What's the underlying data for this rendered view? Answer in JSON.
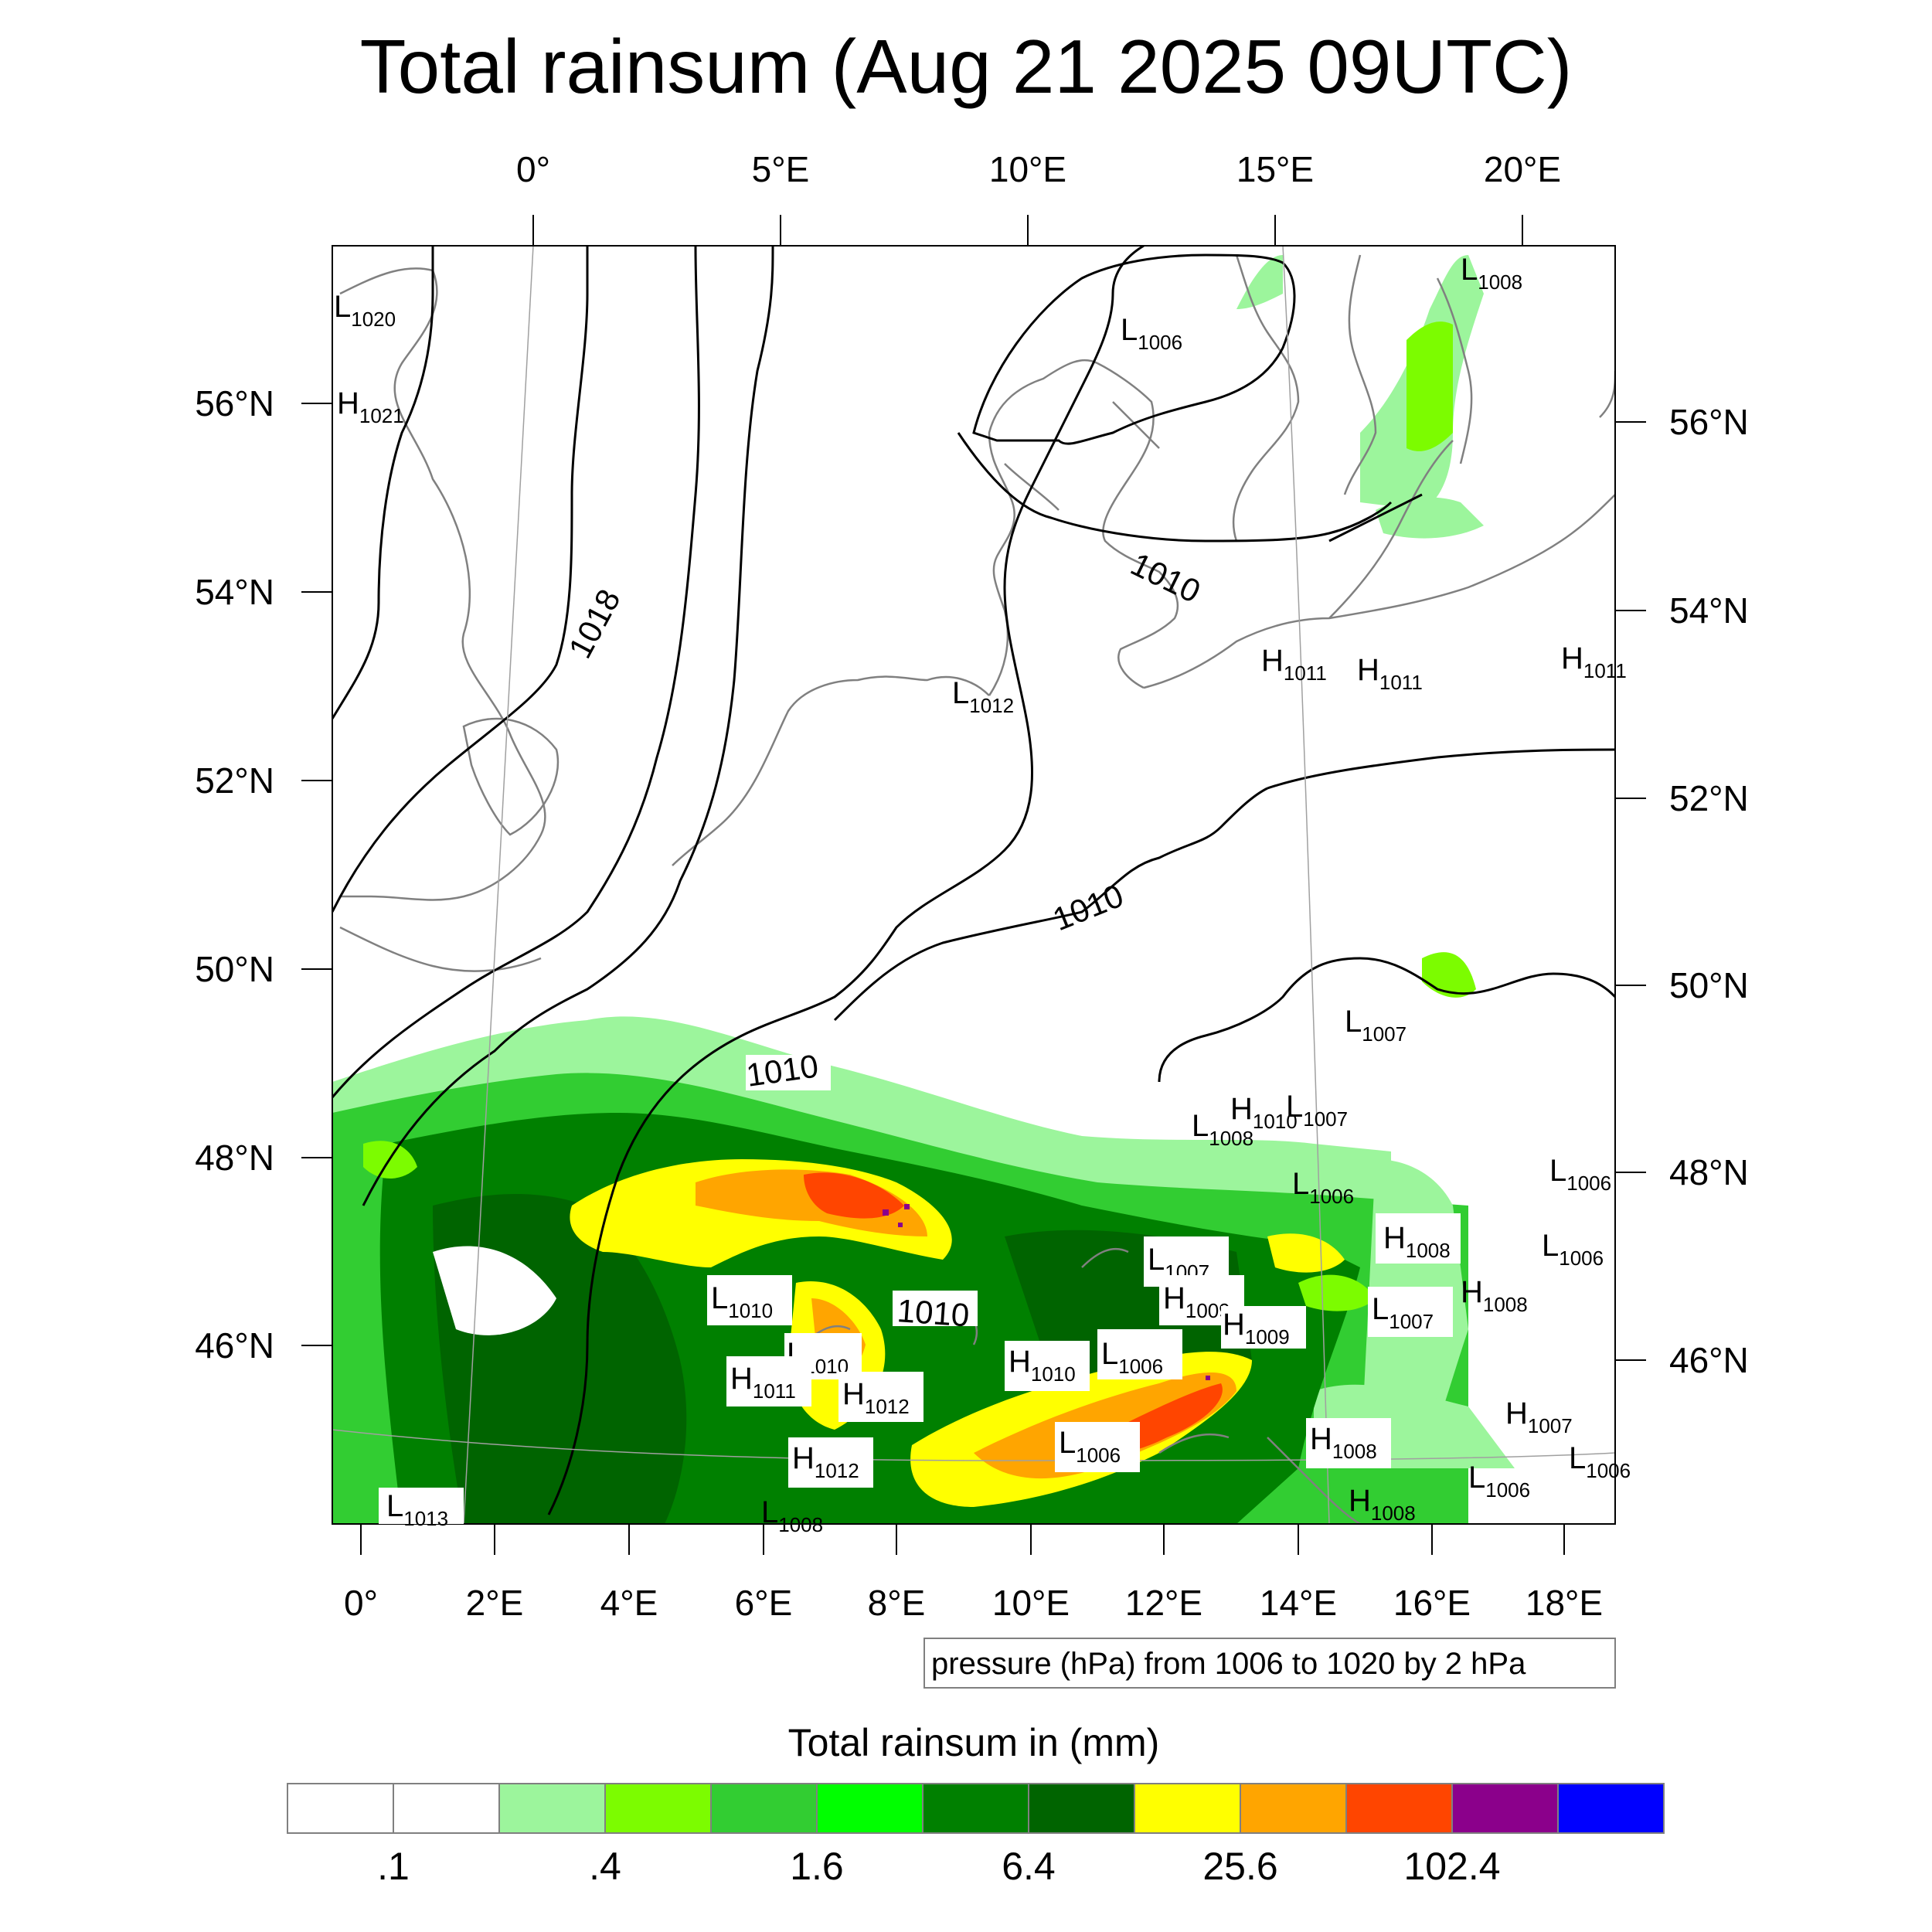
{
  "title": "Total rainsum (Aug 21 2025 09UTC)",
  "top_lon_labels": [
    "0°",
    "5°E",
    "10°E",
    "15°E",
    "20°E"
  ],
  "bottom_lon_labels": [
    "0°",
    "2°E",
    "4°E",
    "6°E",
    "8°E",
    "10°E",
    "12°E",
    "14°E",
    "16°E",
    "18°E"
  ],
  "left_lat_labels": [
    "56°N",
    "54°N",
    "52°N",
    "50°N",
    "48°N",
    "46°N"
  ],
  "right_lat_labels": [
    "56°N",
    "54°N",
    "52°N",
    "50°N",
    "48°N",
    "46°N"
  ],
  "contour_info": "pressure (hPa) from 1006 to 1020 by 2 hPa",
  "contour_labels": [
    {
      "text": "1018"
    },
    {
      "text": "1010"
    },
    {
      "text": "1010"
    },
    {
      "text": "1010"
    },
    {
      "text": "1010"
    }
  ],
  "pressure_centers": [
    {
      "kind": "L",
      "value": "1020"
    },
    {
      "kind": "H",
      "value": "1021"
    },
    {
      "kind": "L",
      "value": "1006"
    },
    {
      "kind": "L",
      "value": "1008"
    },
    {
      "kind": "L",
      "value": "1012"
    },
    {
      "kind": "H",
      "value": "1011"
    },
    {
      "kind": "H",
      "value": "1011"
    },
    {
      "kind": "H",
      "value": "1011"
    },
    {
      "kind": "L",
      "value": "1007"
    },
    {
      "kind": "L",
      "value": "1008"
    },
    {
      "kind": "H",
      "value": "1010"
    },
    {
      "kind": "L",
      "value": "1007"
    },
    {
      "kind": "L",
      "value": "1006"
    },
    {
      "kind": "L",
      "value": "1006"
    },
    {
      "kind": "H",
      "value": "1008"
    },
    {
      "kind": "L",
      "value": "1007"
    },
    {
      "kind": "L",
      "value": "1006"
    },
    {
      "kind": "L",
      "value": "1010"
    },
    {
      "kind": "H",
      "value": "1009"
    },
    {
      "kind": "H",
      "value": "1009"
    },
    {
      "kind": "L",
      "value": "1007"
    },
    {
      "kind": "H",
      "value": "1008"
    },
    {
      "kind": "L",
      "value": "1010"
    },
    {
      "kind": "H",
      "value": "1011"
    },
    {
      "kind": "H",
      "value": "1012"
    },
    {
      "kind": "H",
      "value": "1010"
    },
    {
      "kind": "L",
      "value": "1006"
    },
    {
      "kind": "L",
      "value": "1006"
    },
    {
      "kind": "H",
      "value": "1012"
    },
    {
      "kind": "H",
      "value": "1008"
    },
    {
      "kind": "H",
      "value": "1007"
    },
    {
      "kind": "L",
      "value": "1006"
    },
    {
      "kind": "L",
      "value": "1013"
    },
    {
      "kind": "L",
      "value": "1008"
    },
    {
      "kind": "H",
      "value": "1008"
    },
    {
      "kind": "L",
      "value": "1006"
    }
  ],
  "colorbar": {
    "title": "Total rainsum in (mm)",
    "colors": [
      "#ffffff",
      "#ffffff",
      "#9cf59c",
      "#7cfc00",
      "#32cd32",
      "#00ff00",
      "#008000",
      "#006400",
      "#ffff00",
      "#ffa500",
      "#ff4500",
      "#8b008b",
      "#0000ff"
    ],
    "tick_labels": [
      ".1",
      ".4",
      "1.6",
      "6.4",
      "25.6",
      "102.4"
    ]
  }
}
